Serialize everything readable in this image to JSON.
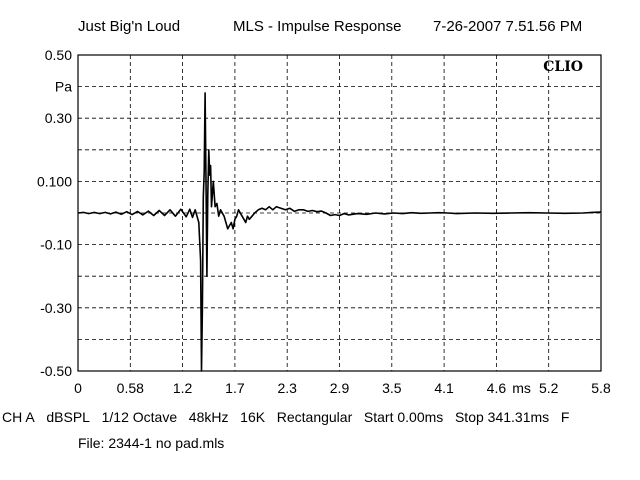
{
  "header": {
    "left": "Just Big'n Loud",
    "center": "MLS - Impulse Response",
    "right": "7-26-2007 7.51.56 PM"
  },
  "brand": "CLIO",
  "settings_items": [
    "CH A",
    "dBSPL",
    "1/12 Octave",
    "48kHz",
    "16K",
    "Rectangular",
    "Start 0.00ms",
    "Stop 341.31ms",
    "F"
  ],
  "file_line": "File: 2344-1 no pad.mls",
  "chart_data": {
    "type": "line",
    "title": "MLS - Impulse Response",
    "xlabel": "",
    "ylabel": "Pa",
    "xlim": [
      0,
      5.8
    ],
    "ylim": [
      -0.5,
      0.5
    ],
    "x_ticks": [
      {
        "value": 0,
        "label": "0"
      },
      {
        "value": 0.58,
        "label": "0.58"
      },
      {
        "value": 1.2,
        "label": "1.2"
      },
      {
        "value": 1.7,
        "label": "1.7"
      },
      {
        "value": 2.3,
        "label": "2.3"
      },
      {
        "value": 2.9,
        "label": "2.9"
      },
      {
        "value": 3.5,
        "label": "3.5"
      },
      {
        "value": 4.1,
        "label": "4.1"
      },
      {
        "value": 4.6,
        "label": "4.6"
      },
      {
        "value": 5.2,
        "label": "5.2"
      },
      {
        "value": 5.8,
        "label": "5.8"
      }
    ],
    "x_unit_label": "ms",
    "y_ticks": [
      {
        "value": 0.5,
        "label": "0.50"
      },
      {
        "value": 0.4,
        "label": "Pa"
      },
      {
        "value": 0.3,
        "label": "0.30"
      },
      {
        "value": 0.1,
        "label": "0.100"
      },
      {
        "value": -0.1,
        "label": "-0.10"
      },
      {
        "value": -0.3,
        "label": "-0.30"
      },
      {
        "value": -0.5,
        "label": "-0.50"
      }
    ],
    "grid": true,
    "grid_style": "dashed",
    "series": [
      {
        "color": "#000000",
        "x": [
          0.0,
          0.06,
          0.12,
          0.18,
          0.24,
          0.3,
          0.36,
          0.42,
          0.48,
          0.54,
          0.6,
          0.66,
          0.72,
          0.78,
          0.84,
          0.9,
          0.96,
          1.02,
          1.08,
          1.14,
          1.2,
          1.24,
          1.27,
          1.3,
          1.32,
          1.34,
          1.36,
          1.37,
          1.38,
          1.39,
          1.4,
          1.41,
          1.42,
          1.43,
          1.44,
          1.45,
          1.46,
          1.47,
          1.48,
          1.49,
          1.5,
          1.52,
          1.54,
          1.56,
          1.58,
          1.6,
          1.62,
          1.64,
          1.66,
          1.68,
          1.7,
          1.72,
          1.74,
          1.76,
          1.78,
          1.8,
          1.82,
          1.84,
          1.86,
          1.88,
          1.9,
          1.93,
          1.96,
          2.0,
          2.04,
          2.08,
          2.12,
          2.16,
          2.2,
          2.25,
          2.3,
          2.35,
          2.4,
          2.45,
          2.5,
          2.55,
          2.6,
          2.65,
          2.7,
          2.75,
          2.8,
          2.85,
          2.9,
          2.95,
          3.0,
          3.1,
          3.2,
          3.3,
          3.4,
          3.5,
          3.6,
          3.7,
          3.8,
          3.9,
          4.0,
          4.1,
          4.2,
          4.4,
          4.6,
          4.8,
          5.0,
          5.2,
          5.4,
          5.6,
          5.7,
          5.8
        ],
        "y": [
          0.0,
          0.002,
          -0.002,
          0.002,
          -0.002,
          0.002,
          -0.003,
          0.003,
          -0.004,
          0.004,
          -0.005,
          0.005,
          -0.006,
          0.006,
          -0.008,
          0.008,
          -0.008,
          0.01,
          -0.01,
          0.012,
          -0.012,
          0.012,
          -0.014,
          0.01,
          -0.01,
          -0.03,
          -0.15,
          -0.5,
          -0.3,
          0.05,
          0.13,
          0.38,
          0.1,
          -0.2,
          0.06,
          0.2,
          0.12,
          0.15,
          0.02,
          0.06,
          0.1,
          0.02,
          0.03,
          -0.01,
          0.01,
          0.0,
          -0.01,
          -0.03,
          -0.05,
          -0.04,
          -0.03,
          -0.05,
          -0.02,
          -0.01,
          0.01,
          0.0,
          -0.01,
          -0.02,
          -0.03,
          -0.01,
          -0.02,
          -0.01,
          0.0,
          0.01,
          0.015,
          0.01,
          0.02,
          0.01,
          0.02,
          0.015,
          0.01,
          0.015,
          0.005,
          0.01,
          0.01,
          0.005,
          0.008,
          0.004,
          0.006,
          0.0,
          -0.008,
          -0.005,
          -0.008,
          -0.002,
          -0.006,
          -0.002,
          -0.004,
          0.0,
          -0.003,
          0.0,
          -0.002,
          0.001,
          -0.001,
          0.0,
          0.001,
          0.0,
          -0.002,
          0.0,
          -0.001,
          0.0,
          0.001,
          0.0,
          -0.001,
          0.0,
          0.002,
          0.003
        ]
      }
    ]
  }
}
